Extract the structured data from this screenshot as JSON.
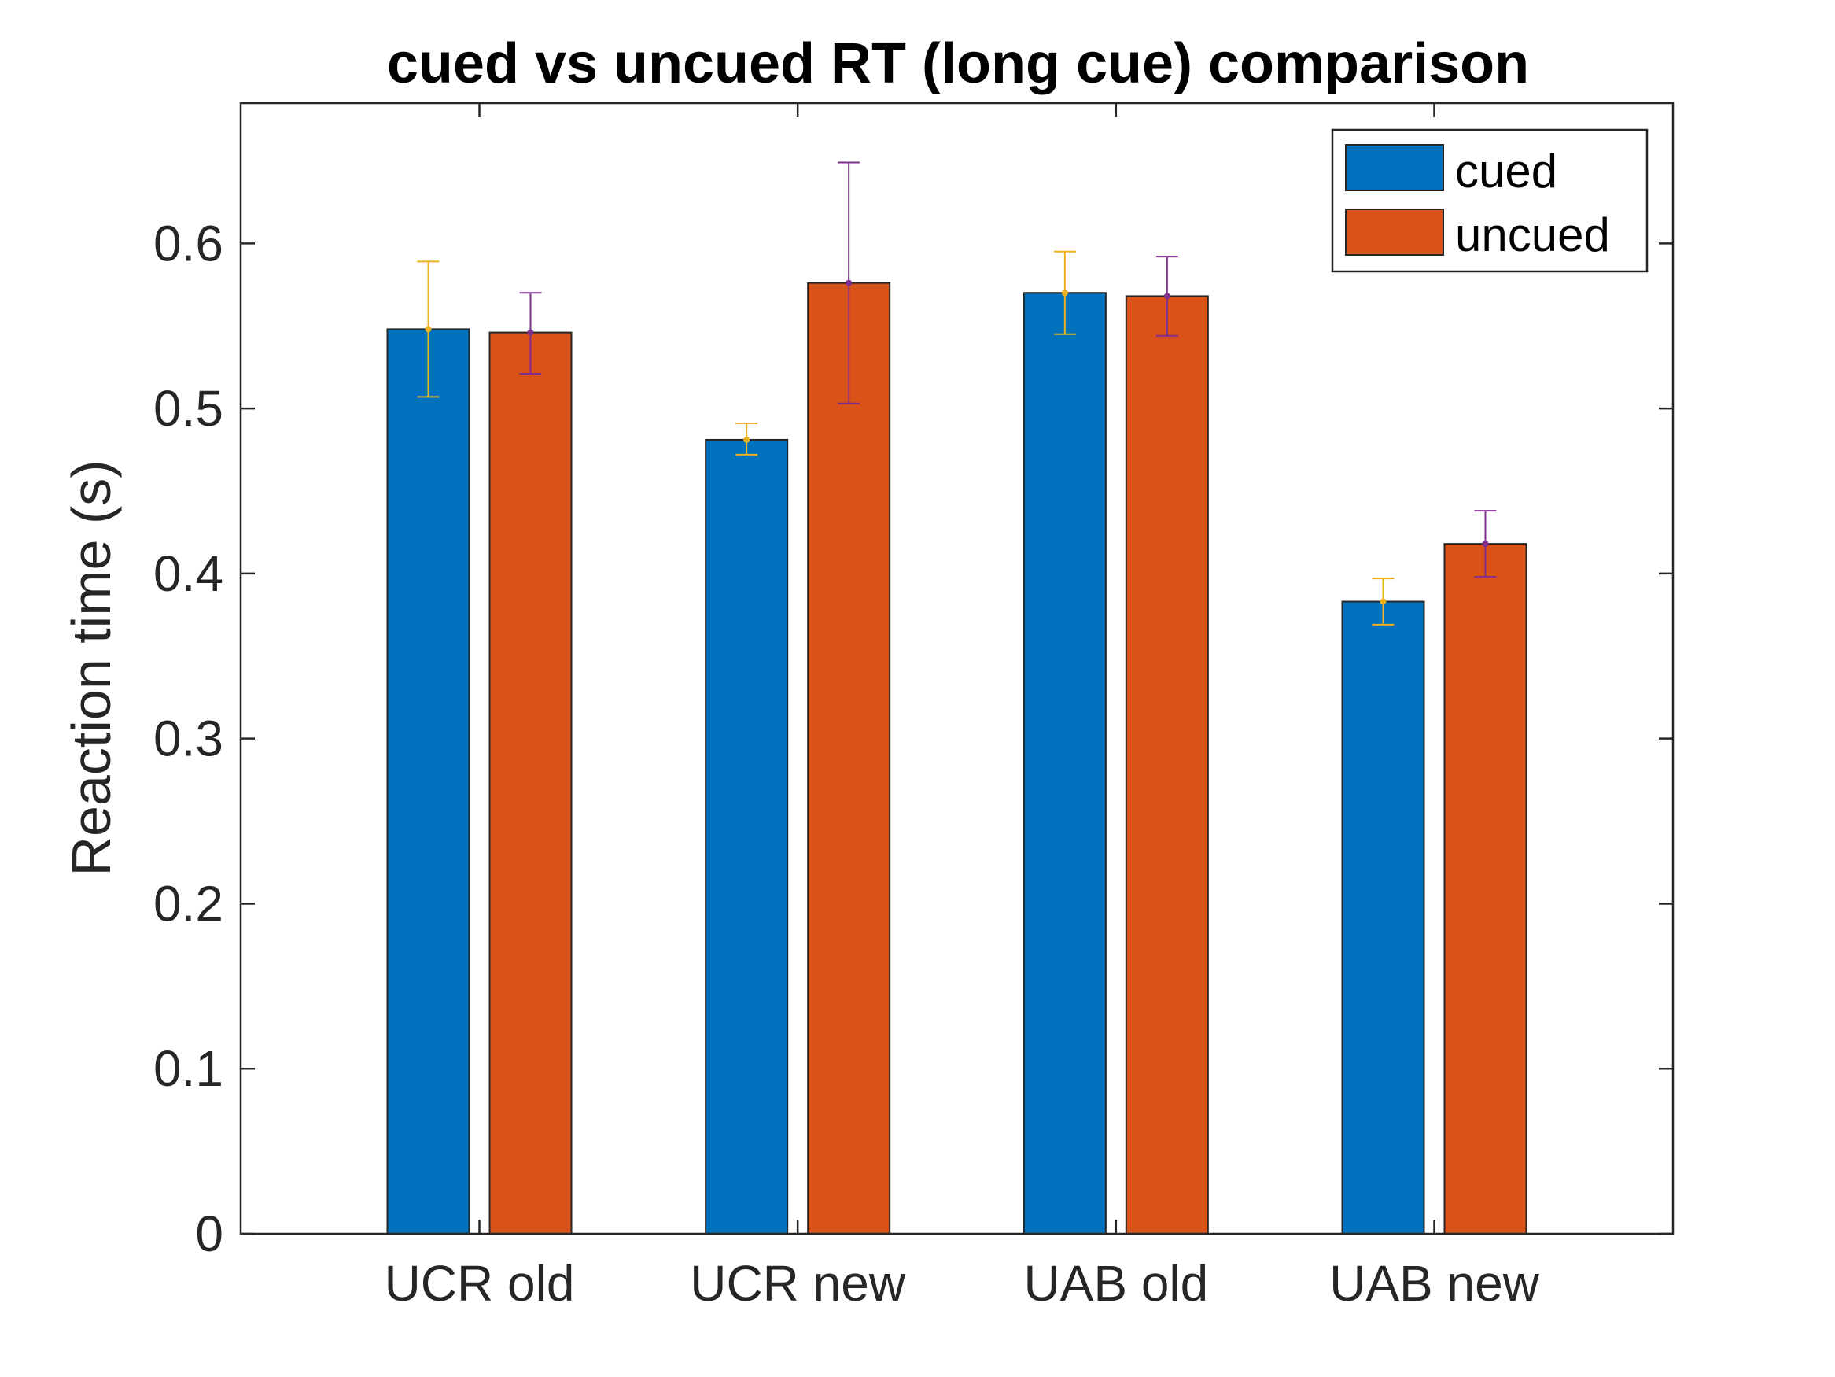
{
  "chart_data": {
    "type": "bar",
    "title": "cued vs uncued RT (long cue) comparison",
    "xlabel": "",
    "ylabel": "Reaction time (s)",
    "categories": [
      "UCR old",
      "UCR new",
      "UAB old",
      "UAB new"
    ],
    "ylim": [
      0,
      0.685
    ],
    "yticks": [
      0,
      0.1,
      0.2,
      0.3,
      0.4,
      0.5,
      0.6
    ],
    "ytick_labels": [
      "0",
      "0.1",
      "0.2",
      "0.3",
      "0.4",
      "0.5",
      "0.6"
    ],
    "grid": false,
    "legend_position": "top-right",
    "series": [
      {
        "name": "cued",
        "color": "#0072BD",
        "values": [
          0.548,
          0.481,
          0.57,
          0.383
        ],
        "error_low": [
          0.507,
          0.472,
          0.545,
          0.369
        ],
        "error_high": [
          0.589,
          0.491,
          0.595,
          0.397
        ],
        "error_color": "#EDB120"
      },
      {
        "name": "uncued",
        "color": "#D95319",
        "values": [
          0.546,
          0.576,
          0.568,
          0.418
        ],
        "error_low": [
          0.521,
          0.503,
          0.544,
          0.398
        ],
        "error_high": [
          0.57,
          0.649,
          0.592,
          0.438
        ],
        "error_color": "#7E2F8E"
      }
    ]
  }
}
